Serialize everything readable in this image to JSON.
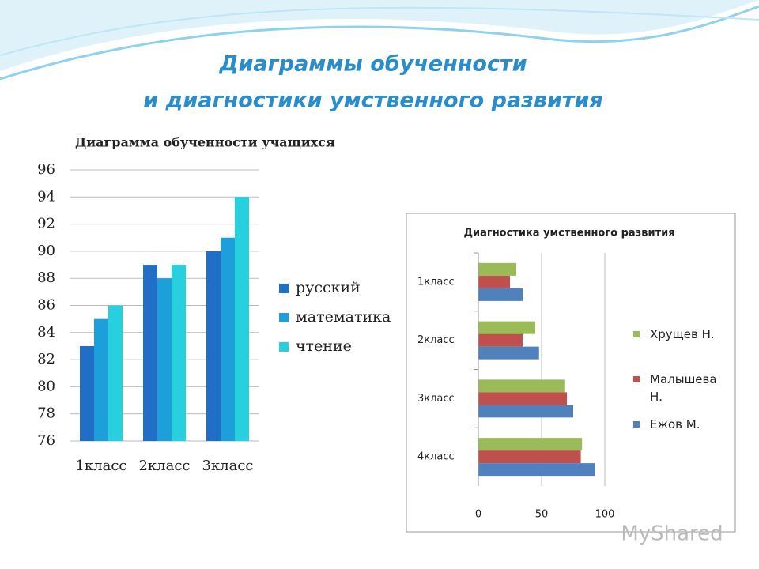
{
  "title": [
    "Диаграммы обученности",
    "и диагностики умственного развития"
  ],
  "watermark": "MyShared",
  "chart_data": [
    {
      "type": "bar",
      "title": "Диаграмма обученности учащихся",
      "categories": [
        "1класс",
        "2класс",
        "3класс"
      ],
      "series": [
        {
          "name": "русский",
          "color": "#1f6fc6",
          "values": [
            83,
            89,
            90
          ]
        },
        {
          "name": "математика",
          "color": "#1d9fd9",
          "values": [
            85,
            88,
            91
          ]
        },
        {
          "name": "чтение",
          "color": "#27d0df",
          "values": [
            86,
            89,
            94
          ]
        }
      ],
      "ylim": [
        76,
        96
      ],
      "yticks": [
        76,
        78,
        80,
        82,
        84,
        86,
        88,
        90,
        92,
        94,
        96
      ],
      "grid": true,
      "legend": "right"
    },
    {
      "type": "barh",
      "title": "Диагностика умственного развития",
      "categories": [
        "1класс",
        "2класс",
        "3класс",
        "4класс"
      ],
      "series": [
        {
          "name": "Хрущев Н.",
          "color": "#9bbb59",
          "values": [
            30,
            45,
            68,
            82
          ]
        },
        {
          "name": "Малышева Н.",
          "color": "#c0504d",
          "values": [
            25,
            35,
            70,
            81
          ]
        },
        {
          "name": "Ежов М.",
          "color": "#4f81bd",
          "values": [
            35,
            48,
            75,
            92
          ]
        }
      ],
      "xlim": [
        0,
        100
      ],
      "xticks": [
        0,
        50,
        100
      ],
      "grid": true,
      "legend": "right"
    }
  ]
}
